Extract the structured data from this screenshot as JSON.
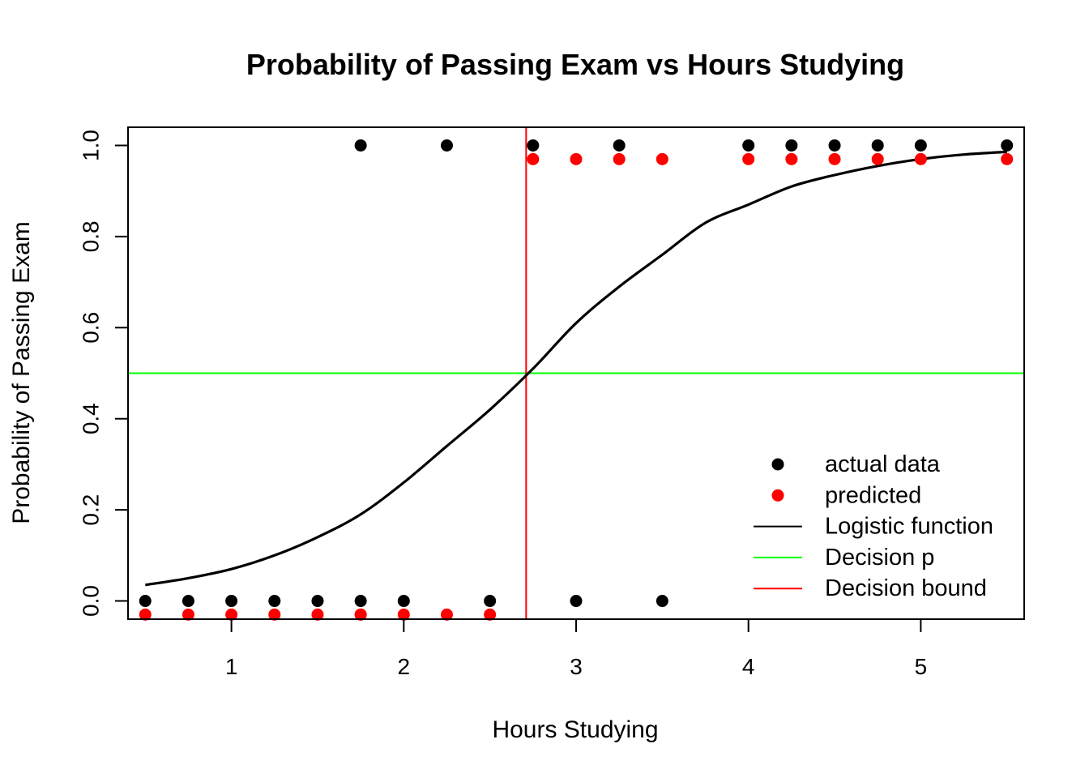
{
  "chart_data": {
    "type": "scatter",
    "title": "Probability of Passing Exam vs Hours Studying",
    "xlabel": "Hours Studying",
    "ylabel": "Probability of Passing Exam",
    "xlim": [
      0.4,
      5.6
    ],
    "ylim": [
      -0.04,
      1.04
    ],
    "x_ticks": [
      1,
      2,
      3,
      4,
      5
    ],
    "y_ticks": [
      0.0,
      0.2,
      0.4,
      0.6,
      0.8,
      1.0
    ],
    "x_tick_labels": [
      "1",
      "2",
      "3",
      "4",
      "5"
    ],
    "y_tick_labels": [
      "0.0",
      "0.2",
      "0.4",
      "0.6",
      "0.8",
      "1.0"
    ],
    "grid": false,
    "legend_position": "bottom-right",
    "series": [
      {
        "name": "actual data",
        "kind": "points",
        "color": "#000000",
        "x": [
          0.5,
          0.75,
          1.0,
          1.25,
          1.5,
          1.75,
          1.75,
          2.0,
          2.25,
          2.5,
          2.75,
          3.0,
          3.25,
          3.5,
          4.0,
          4.25,
          4.5,
          4.75,
          5.0,
          5.5
        ],
        "y": [
          0,
          0,
          0,
          0,
          0,
          0,
          1,
          0,
          1,
          0,
          1,
          0,
          1,
          0,
          1,
          1,
          1,
          1,
          1,
          1
        ]
      },
      {
        "name": "predicted",
        "kind": "points",
        "color": "#ff0000",
        "x": [
          0.5,
          0.75,
          1.0,
          1.25,
          1.5,
          1.75,
          1.75,
          2.0,
          2.25,
          2.5,
          2.75,
          3.0,
          3.25,
          3.5,
          4.0,
          4.25,
          4.5,
          4.75,
          5.0,
          5.5
        ],
        "y": [
          -0.03,
          -0.03,
          -0.03,
          -0.03,
          -0.03,
          -0.03,
          -0.03,
          -0.03,
          -0.03,
          -0.03,
          0.97,
          0.97,
          0.97,
          0.97,
          0.97,
          0.97,
          0.97,
          0.97,
          0.97,
          0.97
        ]
      },
      {
        "name": "Logistic function",
        "kind": "curve",
        "color": "#000000",
        "x": [
          0.5,
          0.75,
          1.0,
          1.25,
          1.5,
          1.75,
          2.0,
          2.25,
          2.5,
          2.75,
          3.0,
          3.25,
          3.5,
          3.75,
          4.0,
          4.25,
          4.5,
          4.75,
          5.0,
          5.25,
          5.5
        ],
        "y": [
          0.035,
          0.05,
          0.07,
          0.1,
          0.14,
          0.19,
          0.26,
          0.34,
          0.42,
          0.51,
          0.61,
          0.69,
          0.76,
          0.83,
          0.87,
          0.91,
          0.935,
          0.955,
          0.97,
          0.98,
          0.986
        ]
      },
      {
        "name": "Decision p",
        "kind": "hline",
        "color": "#00ff00",
        "y": 0.5
      },
      {
        "name": "Decision bound",
        "kind": "vline",
        "color": "#ff0000",
        "x": 2.71
      }
    ]
  }
}
